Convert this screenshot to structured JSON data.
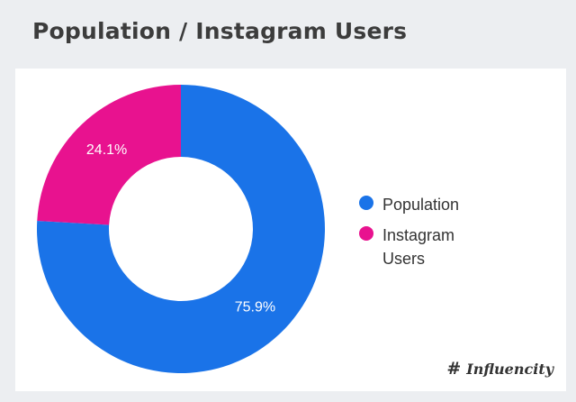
{
  "title": "Population / Instagram Users",
  "chart_data": {
    "type": "pie",
    "donut": true,
    "categories": [
      "Population",
      "Instagram Users"
    ],
    "values": [
      75.9,
      24.1
    ],
    "labels": [
      "75.9%",
      "24.1%"
    ],
    "colors": [
      "#1a73e8",
      "#e8128f"
    ],
    "legend_position": "right"
  },
  "legend": {
    "items": [
      {
        "label": "Population",
        "color": "#1a73e8"
      },
      {
        "label": "Instagram Users",
        "color": "#e8128f"
      }
    ]
  },
  "branding": {
    "logo_text": "Influencity",
    "logo_icon": "hash-icon"
  }
}
